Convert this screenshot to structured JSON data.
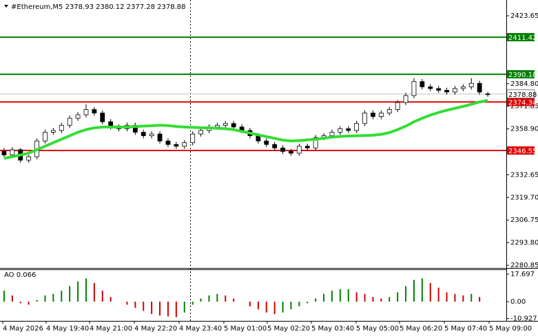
{
  "chart_data": {
    "type": "candlestick",
    "title": "#Ethereum,M5 2378.93 2380.12 2377.28 2378.88",
    "xlim": [
      -0.5,
      59.5
    ],
    "xticks": [
      {
        "value": -0.16,
        "label": "4 May 2026"
      },
      {
        "value": 5.13,
        "label": "4 May 19:40"
      },
      {
        "value": 10.42,
        "label": "4 May 21:00"
      },
      {
        "value": 15.89,
        "label": "4 May 22:20"
      },
      {
        "value": 21.35,
        "label": "4 May 23:40"
      },
      {
        "value": 26.81,
        "label": "5 May 01:00"
      },
      {
        "value": 32.1,
        "label": "5 May 02:20"
      },
      {
        "value": 37.48,
        "label": "5 May 03:40"
      },
      {
        "value": 42.94,
        "label": "5 May 05:00"
      },
      {
        "value": 48.24,
        "label": "5 May 06:20"
      },
      {
        "value": 53.7,
        "label": "5 May 07:40"
      },
      {
        "value": 59.16,
        "label": "5 May 09:00"
      }
    ],
    "ylim": [
      2279.3,
      2432.7
    ],
    "yticks": [
      2423.65,
      {
        "value": 2384.8,
        "label": "2384.80"
      },
      2371.85,
      {
        "value": 2358.9,
        "label": "2358.90"
      },
      2332.65,
      {
        "value": 2319.7,
        "label": "2319.70"
      },
      2306.75,
      {
        "value": 2293.8,
        "label": "2293.80"
      },
      2280.85
    ],
    "candles": {
      "open": [
        2346,
        2344,
        2347,
        2341,
        2343,
        2352,
        2357,
        2358,
        2361,
        2365,
        2367,
        2370,
        2368,
        2363,
        2360,
        2359,
        2361,
        2357,
        2355,
        2356,
        2352,
        2350,
        2349,
        2351,
        2356,
        2358,
        2360,
        2361,
        2362,
        2360,
        2358,
        2355,
        2352,
        2350,
        2348,
        2346,
        2345,
        2349,
        2348,
        2354,
        2355,
        2357,
        2359,
        2358,
        2362,
        2368,
        2366,
        2368,
        2370,
        2374,
        2378,
        2386,
        2383,
        2382,
        2381,
        2380,
        2382,
        2383,
        2385,
        2378.93
      ],
      "high": [
        2348,
        2348.5,
        2348,
        2344,
        2353.5,
        2358.5,
        2359.5,
        2362.5,
        2366.5,
        2368.5,
        2373,
        2371.5,
        2369.5,
        2364.5,
        2361.5,
        2362.5,
        2362.5,
        2358.5,
        2357.5,
        2357.5,
        2353.5,
        2351.5,
        2352.5,
        2357.5,
        2359.5,
        2361.5,
        2362.5,
        2363.5,
        2363.5,
        2361.5,
        2359.5,
        2356.5,
        2353.5,
        2351.5,
        2349.5,
        2347.5,
        2350.5,
        2350.5,
        2355.5,
        2356.5,
        2358.5,
        2360.5,
        2360.5,
        2363.5,
        2369.5,
        2369.5,
        2369.5,
        2371.5,
        2375.5,
        2379.5,
        2388,
        2387.5,
        2384.5,
        2383.5,
        2382.5,
        2383.5,
        2384.5,
        2388,
        2386.5,
        2380.12
      ],
      "low": [
        2342.5,
        2342.5,
        2339.5,
        2339.5,
        2341.5,
        2350.5,
        2355.5,
        2356.5,
        2359.5,
        2363.5,
        2365.5,
        2366.5,
        2361.5,
        2358.5,
        2357.5,
        2357.5,
        2355.5,
        2353.5,
        2353.5,
        2350.5,
        2348.5,
        2347.5,
        2347.5,
        2349.5,
        2354.5,
        2356.5,
        2358.5,
        2359.5,
        2358.5,
        2356.5,
        2353.5,
        2350.5,
        2348.5,
        2346.5,
        2344.5,
        2343.5,
        2343.5,
        2346.5,
        2346.5,
        2352.5,
        2353.5,
        2355.5,
        2356.5,
        2356.5,
        2360.5,
        2364.5,
        2364.5,
        2366.5,
        2368.5,
        2372.5,
        2376.5,
        2381.5,
        2380.5,
        2379.5,
        2378.5,
        2378.5,
        2380.5,
        2381.5,
        2378.5,
        2377.28
      ],
      "close": [
        2344,
        2347,
        2341,
        2343,
        2352,
        2357,
        2358,
        2361,
        2365,
        2367,
        2370,
        2368,
        2363,
        2360,
        2359,
        2361,
        2357,
        2355,
        2356,
        2352,
        2350,
        2349,
        2351,
        2356,
        2358,
        2360,
        2361,
        2362,
        2360,
        2358,
        2355,
        2352,
        2350,
        2348,
        2346,
        2345,
        2349,
        2348,
        2354,
        2355,
        2357,
        2359,
        2358,
        2362,
        2368,
        2366,
        2368,
        2370,
        2374,
        2378,
        2386,
        2383,
        2382,
        2381,
        2380,
        2382,
        2383,
        2385,
        2380,
        2378.88
      ]
    },
    "moving_average": {
      "color": "#33dd33",
      "values": [
        2342,
        2343,
        2344,
        2345,
        2347,
        2349,
        2351,
        2353,
        2355,
        2357,
        2358.5,
        2359.5,
        2360,
        2360,
        2360,
        2360,
        2360.3,
        2360.5,
        2360.7,
        2361,
        2360.8,
        2360.3,
        2360,
        2359.8,
        2359.6,
        2359.5,
        2359.3,
        2359,
        2358.5,
        2357.5,
        2356.5,
        2355.5,
        2354.5,
        2353.5,
        2352.5,
        2352,
        2352.2,
        2352.6,
        2353,
        2353.6,
        2354.2,
        2354.6,
        2354.8,
        2355,
        2355.1,
        2355.3,
        2355.8,
        2356.8,
        2358.5,
        2360.5,
        2363,
        2365,
        2366.8,
        2368.3,
        2369.6,
        2370.7,
        2371.8,
        2373,
        2374.3,
        2375.3
      ]
    },
    "levels": [
      {
        "value": 2411.42,
        "color": "#008000"
      },
      {
        "value": 2390.18,
        "color": "#008000"
      },
      {
        "value": 2374.34,
        "color": "#e00000"
      },
      {
        "value": 2346.55,
        "color": "#e00000"
      }
    ],
    "current_price": 2378.88,
    "indicator": {
      "label": "AO 0.066",
      "up_color": "#008000",
      "down_color": "#cc0000",
      "ylim": [
        -11.95,
        20.35
      ],
      "yticks": [
        17.697,
        {
          "value": 0,
          "label": "0.00"
        },
        -10.927
      ],
      "values": [
        7,
        4,
        -1,
        -2,
        1,
        4,
        5,
        7,
        10,
        13,
        15,
        12,
        7,
        3,
        0,
        -2,
        -4,
        -6,
        -8,
        -9,
        -9.5,
        -10,
        -7,
        -2,
        2,
        4,
        5,
        4,
        2,
        0,
        -3,
        -5,
        -7,
        -8,
        -7,
        -5,
        -3,
        -1,
        2,
        5,
        7,
        8,
        8,
        6,
        5,
        3,
        2,
        3,
        6,
        10,
        14,
        15,
        12,
        9,
        6,
        5,
        4,
        5,
        3,
        0.066
      ]
    }
  }
}
